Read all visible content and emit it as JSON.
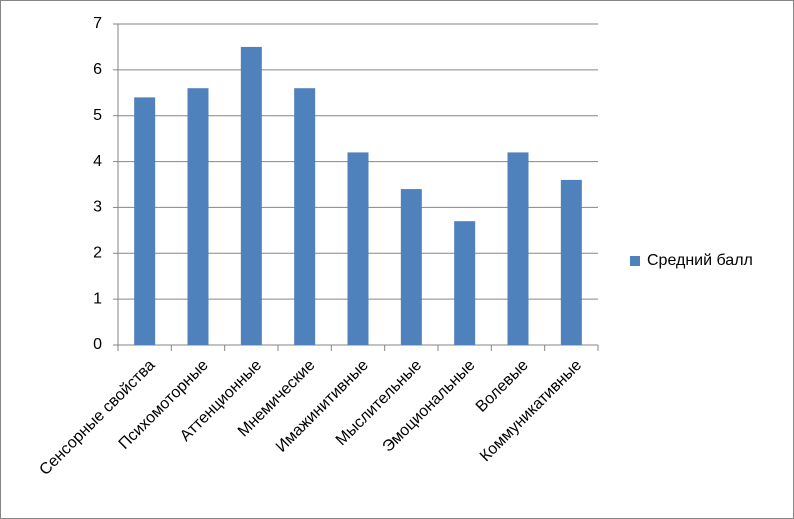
{
  "chart_data": {
    "type": "bar",
    "categories": [
      "Сенсорные свойства",
      "Психомоторные",
      "Аттенционные",
      "Мнемические",
      "Имажинитивные",
      "Мыслительные",
      "Эмоциональные",
      "Волевые",
      "Коммуникативные"
    ],
    "series": [
      {
        "name": "Средний балл",
        "color": "#4f81bd",
        "values": [
          5.4,
          5.6,
          6.5,
          5.6,
          4.2,
          3.4,
          2.7,
          4.2,
          3.6
        ]
      }
    ],
    "ylim": [
      0,
      7
    ],
    "yticks": [
      0,
      1,
      2,
      3,
      4,
      5,
      6,
      7
    ],
    "grid": true,
    "legend": "right"
  }
}
